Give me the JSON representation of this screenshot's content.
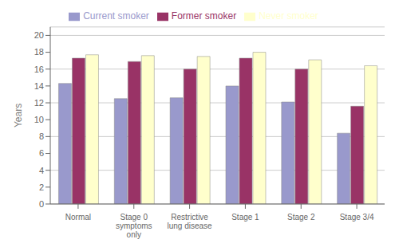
{
  "chart_data": {
    "type": "bar",
    "categories": [
      "Normal",
      "Stage 0\nsymptoms\nonly",
      "Restrictive\nlung disease",
      "Stage 1",
      "Stage 2",
      "Stage 3/4"
    ],
    "series": [
      {
        "name": "Current smoker",
        "color": "#9999CC",
        "values": [
          14.3,
          12.5,
          12.6,
          14.0,
          12.1,
          8.4
        ]
      },
      {
        "name": "Former smoker",
        "color": "#993366",
        "values": [
          17.3,
          16.9,
          16.0,
          17.3,
          16.0,
          11.6
        ]
      },
      {
        "name": "Never smoker",
        "color": "#FFFFCC",
        "values": [
          17.7,
          17.6,
          17.5,
          18.0,
          17.1,
          16.4
        ]
      }
    ],
    "ylabel": "Years",
    "ylim": [
      0,
      21
    ],
    "yticks": [
      0,
      2,
      4,
      6,
      8,
      10,
      12,
      14,
      16,
      18,
      20
    ],
    "grid": true,
    "legend": "top"
  }
}
